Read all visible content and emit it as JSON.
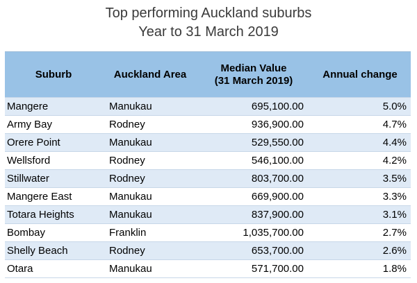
{
  "title": {
    "line1": "Top performing Auckland suburbs",
    "line2": "Year to 31 March 2019"
  },
  "colors": {
    "header_bg": "#99c2e6",
    "band_row": "#dfeaf6",
    "plain_row": "#ffffff"
  },
  "chart_data": {
    "type": "table",
    "title": "Top performing Auckland suburbs",
    "subtitle": "Year to 31 March 2019",
    "columns": [
      "Suburb",
      "Auckland Area",
      "Median Value (31 March 2019)",
      "Annual change"
    ],
    "header": {
      "suburb": "Suburb",
      "area": "Auckland Area",
      "value_line1": "Median Value",
      "value_line2": "(31 March 2019)",
      "change": "Annual change"
    },
    "rows": [
      {
        "suburb": "Mangere",
        "area": "Manukau",
        "value": "695,100.00",
        "change": "5.0%"
      },
      {
        "suburb": "Army Bay",
        "area": "Rodney",
        "value": "936,900.00",
        "change": "4.7%"
      },
      {
        "suburb": "Orere Point",
        "area": "Manukau",
        "value": "529,550.00",
        "change": "4.4%"
      },
      {
        "suburb": "Wellsford",
        "area": "Rodney",
        "value": "546,100.00",
        "change": "4.2%"
      },
      {
        "suburb": "Stillwater",
        "area": "Rodney",
        "value": "803,700.00",
        "change": "3.5%"
      },
      {
        "suburb": "Mangere East",
        "area": "Manukau",
        "value": "669,900.00",
        "change": "3.3%"
      },
      {
        "suburb": "Totara Heights",
        "area": "Manukau",
        "value": "837,900.00",
        "change": "3.1%"
      },
      {
        "suburb": "Bombay",
        "area": "Franklin",
        "value": "1,035,700.00",
        "change": "2.7%"
      },
      {
        "suburb": "Shelly Beach",
        "area": "Rodney",
        "value": "653,700.00",
        "change": "2.6%"
      },
      {
        "suburb": "Otara",
        "area": "Manukau",
        "value": "571,700.00",
        "change": "1.8%"
      }
    ]
  }
}
